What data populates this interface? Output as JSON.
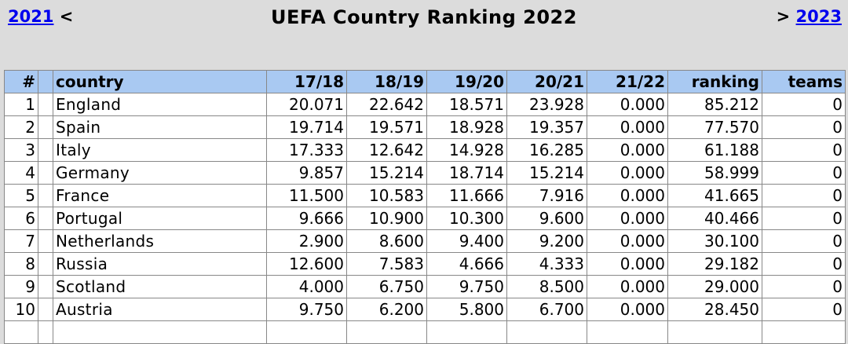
{
  "nav": {
    "prev_year": "2021",
    "prev_arrow": "<",
    "next_arrow": ">",
    "next_year": "2023"
  },
  "title": "UEFA Country Ranking 2022",
  "columns": [
    "#",
    "country",
    "17/18",
    "18/19",
    "19/20",
    "20/21",
    "21/22",
    "ranking",
    "teams"
  ],
  "rows": [
    [
      "1",
      "England",
      "20.071",
      "22.642",
      "18.571",
      "23.928",
      "0.000",
      "85.212",
      "0"
    ],
    [
      "2",
      "Spain",
      "19.714",
      "19.571",
      "18.928",
      "19.357",
      "0.000",
      "77.570",
      "0"
    ],
    [
      "3",
      "Italy",
      "17.333",
      "12.642",
      "14.928",
      "16.285",
      "0.000",
      "61.188",
      "0"
    ],
    [
      "4",
      "Germany",
      "9.857",
      "15.214",
      "18.714",
      "15.214",
      "0.000",
      "58.999",
      "0"
    ],
    [
      "5",
      "France",
      "11.500",
      "10.583",
      "11.666",
      "7.916",
      "0.000",
      "41.665",
      "0"
    ],
    [
      "6",
      "Portugal",
      "9.666",
      "10.900",
      "10.300",
      "9.600",
      "0.000",
      "40.466",
      "0"
    ],
    [
      "7",
      "Netherlands",
      "2.900",
      "8.600",
      "9.400",
      "9.200",
      "0.000",
      "30.100",
      "0"
    ],
    [
      "8",
      "Russia",
      "12.600",
      "7.583",
      "4.666",
      "4.333",
      "0.000",
      "29.182",
      "0"
    ],
    [
      "9",
      "Scotland",
      "4.000",
      "6.750",
      "9.750",
      "8.500",
      "0.000",
      "29.000",
      "0"
    ],
    [
      "10",
      "Austria",
      "9.750",
      "6.200",
      "5.800",
      "6.700",
      "0.000",
      "28.450",
      "0"
    ],
    [
      "",
      "",
      "",
      "",
      "",
      "",
      "",
      "",
      ""
    ]
  ]
}
